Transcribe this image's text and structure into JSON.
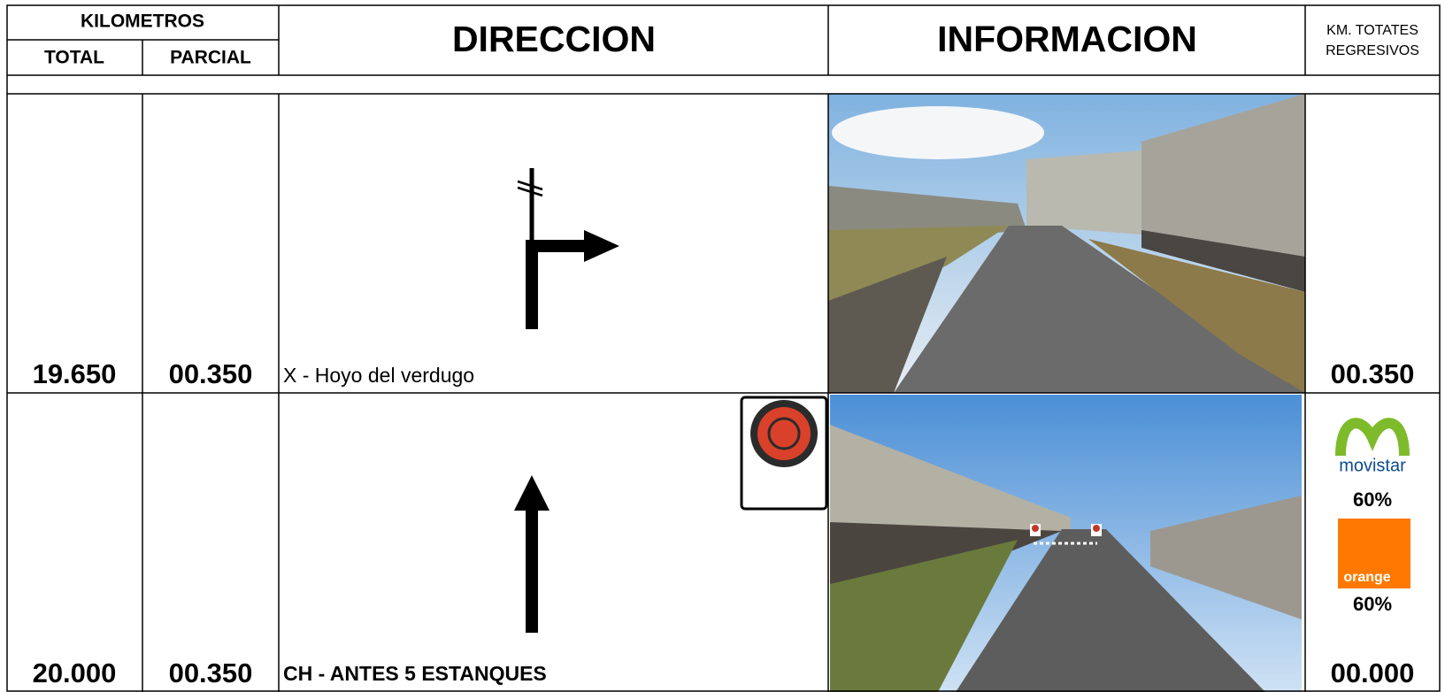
{
  "header": {
    "kilometros": "KILOMETROS",
    "total": "TOTAL",
    "parcial": "PARCIAL",
    "direccion": "DIRECCION",
    "informacion": "INFORMACION",
    "km_totales": [
      "KM. TOTATES",
      "REGRESIVOS"
    ]
  },
  "rows": [
    {
      "total": "19.650",
      "parcial": "00.350",
      "direction": "X - Hoyo del verdugo",
      "km_regresivos": "00.350"
    },
    {
      "total": "20.000",
      "parcial": "00.350",
      "direction": "CH - ANTES 5 ESTANQUES",
      "km_regresivos": "00.000",
      "coverage": [
        {
          "operator": "movistar",
          "percent": "60%"
        },
        {
          "operator": "orange",
          "percent": "60%"
        }
      ]
    }
  ]
}
